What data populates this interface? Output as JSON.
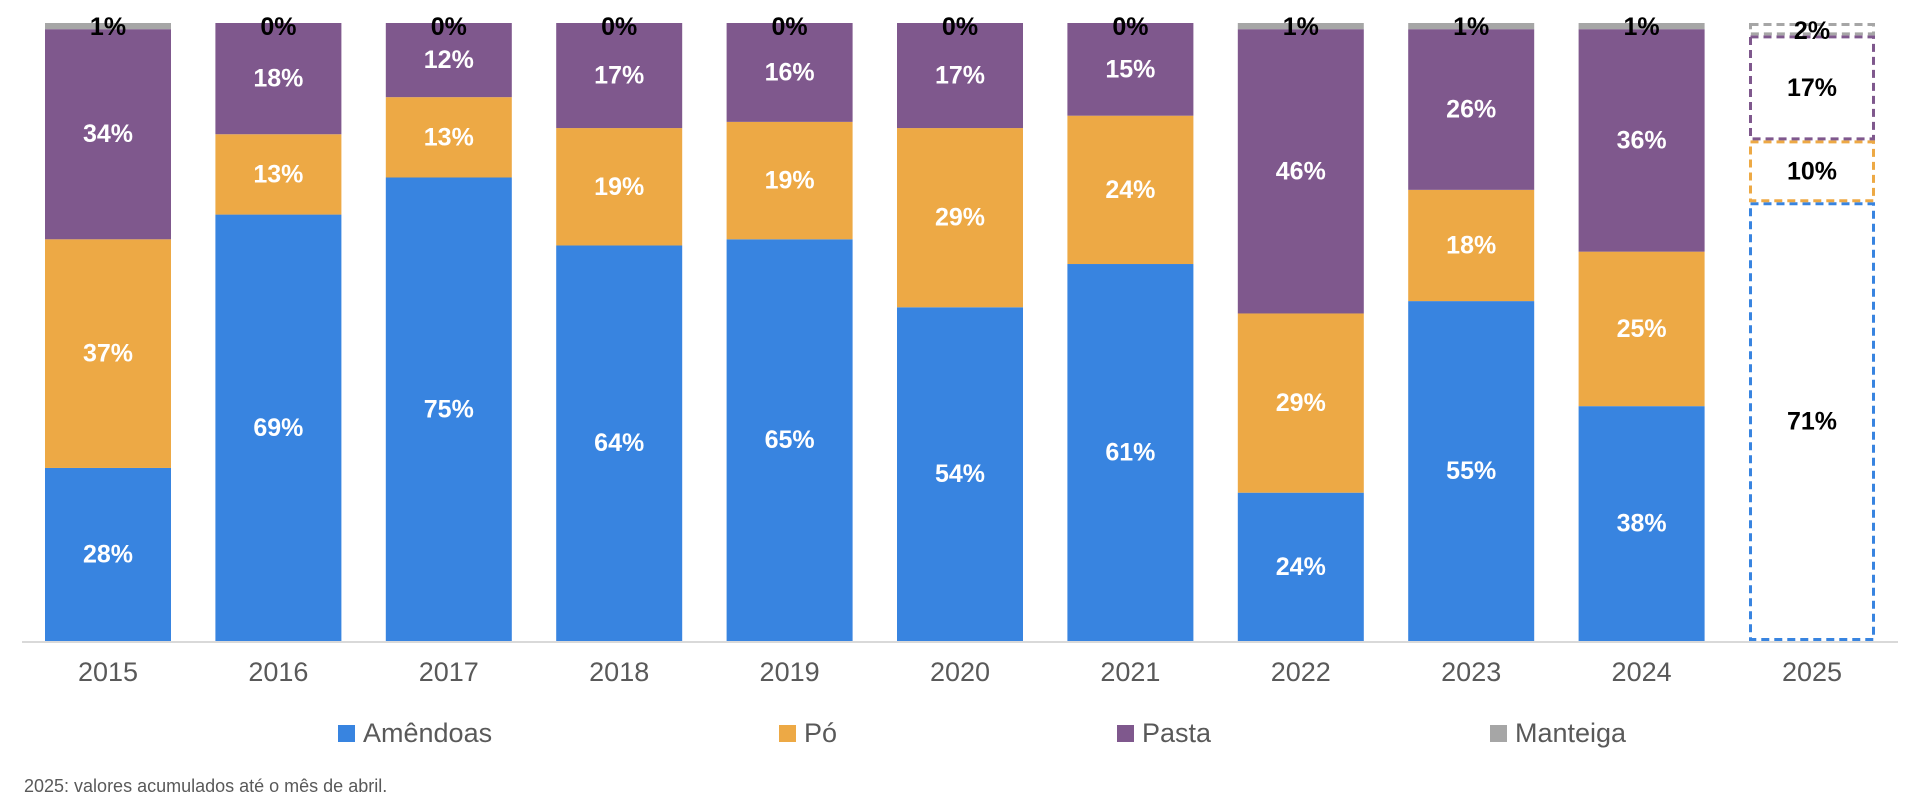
{
  "chart_data": {
    "type": "bar",
    "stacked": true,
    "percent_stacked": true,
    "categories": [
      "2015",
      "2016",
      "2017",
      "2018",
      "2019",
      "2020",
      "2021",
      "2022",
      "2023",
      "2024",
      "2025"
    ],
    "series": [
      {
        "name": "Amêndoas",
        "color": "#3884E0",
        "values": [
          28,
          69,
          75,
          64,
          65,
          54,
          61,
          24,
          55,
          38,
          71
        ],
        "labels": [
          "28%",
          "69%",
          "75%",
          "64%",
          "65%",
          "54%",
          "61%",
          "24%",
          "55%",
          "38%",
          "71%"
        ]
      },
      {
        "name": "Pó",
        "color": "#EDA945",
        "values": [
          37,
          13,
          13,
          19,
          19,
          29,
          24,
          29,
          18,
          25,
          10
        ],
        "labels": [
          "37%",
          "13%",
          "13%",
          "19%",
          "19%",
          "29%",
          "24%",
          "29%",
          "18%",
          "25%",
          "10%"
        ]
      },
      {
        "name": "Pasta",
        "color": "#7F588D",
        "values": [
          34,
          18,
          12,
          17,
          16,
          17,
          15,
          46,
          26,
          36,
          17
        ],
        "labels": [
          "34%",
          "18%",
          "12%",
          "17%",
          "16%",
          "17%",
          "15%",
          "46%",
          "26%",
          "36%",
          "17%"
        ]
      },
      {
        "name": "Manteiga",
        "color": "#A6A6A6",
        "values": [
          1,
          0,
          0,
          0,
          0,
          0,
          0,
          1,
          1,
          1,
          2
        ],
        "labels": [
          "1%",
          "0%",
          "0%",
          "0%",
          "0%",
          "0%",
          "0%",
          "1%",
          "1%",
          "1%",
          "2%"
        ]
      }
    ],
    "highlighted_category": "2025",
    "legend_position": "bottom",
    "grid": false,
    "title": "",
    "xlabel": "",
    "ylabel": ""
  },
  "note": "2025: valores acumulados até o mês de abril."
}
